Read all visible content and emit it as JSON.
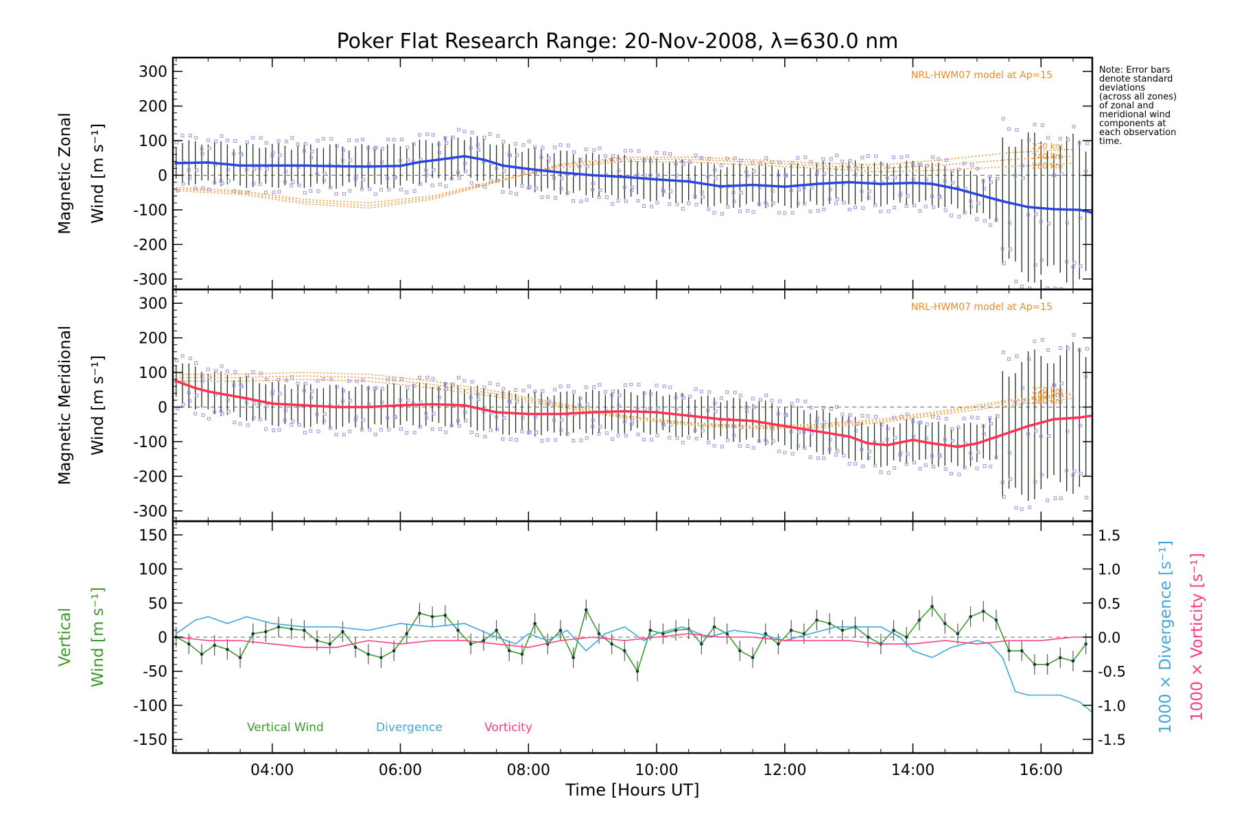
{
  "title": "Poker Flat Research Range: 20-Nov-2008, λ=630.0 nm",
  "note_lines": [
    "Note: Error bars",
    "denote standard",
    "deviations",
    "(across all zones)",
    "of zonal and",
    "meridional wind",
    "components at",
    "each observation",
    "time."
  ],
  "colors": {
    "zonal": "#2a44e0",
    "meridional": "#ff3050",
    "vertical": "#3c9a2a",
    "divergence": "#3fa6d9",
    "vorticity": "#ff3a7a",
    "model": "#f08a24",
    "scatter": "#9a92dc"
  },
  "chart_data": [
    {
      "type": "line",
      "id": "zonal",
      "ylabel_line1": "Magnetic Zonal",
      "ylabel_line2": "Wind [m s⁻¹]",
      "ylim": [
        -330,
        340
      ],
      "yticks": [
        -300,
        -200,
        -100,
        0,
        100,
        200,
        300
      ],
      "xlim": [
        2.45,
        16.8
      ],
      "model_label": "NRL-HWM07 model at Ap=15",
      "model_altitudes": [
        "220 km",
        "240 km",
        "260 km"
      ],
      "series": [
        {
          "role": "mean",
          "x": [
            2.5,
            3.0,
            3.5,
            4.0,
            4.5,
            5.0,
            5.5,
            6.0,
            6.3,
            6.6,
            7.0,
            7.3,
            7.6,
            8.0,
            8.5,
            9.0,
            9.5,
            10.0,
            10.5,
            11.0,
            11.5,
            12.0,
            12.5,
            13.0,
            13.5,
            14.0,
            14.3,
            14.7,
            15.0,
            15.4,
            15.8,
            16.2,
            16.6,
            16.8
          ],
          "y": [
            35,
            37,
            28,
            28,
            28,
            26,
            25,
            27,
            38,
            45,
            55,
            45,
            28,
            18,
            8,
            0,
            -5,
            -12,
            -18,
            -32,
            -28,
            -33,
            -25,
            -20,
            -25,
            -22,
            -25,
            -40,
            -55,
            -75,
            -92,
            -98,
            -100,
            -108
          ]
        },
        {
          "role": "model",
          "name": "220 km",
          "x": [
            2.5,
            3.5,
            4.5,
            5.5,
            6.5,
            7.5,
            8.5,
            9.5,
            10.5,
            11.5,
            12.5,
            13.5,
            14.5,
            15.5,
            16.5
          ],
          "y": [
            -45,
            -55,
            -82,
            -95,
            -70,
            -20,
            32,
            52,
            52,
            45,
            35,
            30,
            45,
            65,
            75
          ]
        },
        {
          "role": "model",
          "name": "240 km",
          "x": [
            2.5,
            3.5,
            4.5,
            5.5,
            6.5,
            7.5,
            8.5,
            9.5,
            10.5,
            11.5,
            12.5,
            13.5,
            14.5,
            15.5,
            16.5
          ],
          "y": [
            -40,
            -50,
            -76,
            -88,
            -65,
            -18,
            28,
            46,
            46,
            38,
            28,
            20,
            30,
            45,
            55
          ]
        },
        {
          "role": "model",
          "name": "260 km",
          "x": [
            2.5,
            3.5,
            4.5,
            5.5,
            6.5,
            7.5,
            8.5,
            9.5,
            10.5,
            11.5,
            12.5,
            13.5,
            14.5,
            15.5,
            16.5
          ],
          "y": [
            -35,
            -45,
            -70,
            -80,
            -60,
            -15,
            22,
            40,
            38,
            30,
            20,
            10,
            15,
            25,
            35
          ]
        }
      ]
    },
    {
      "type": "line",
      "id": "meridional",
      "ylabel_line1": "Magnetic Meridional",
      "ylabel_line2": "Wind [m s⁻¹]",
      "ylim": [
        -330,
        340
      ],
      "yticks": [
        -300,
        -200,
        -100,
        0,
        100,
        200,
        300
      ],
      "xlim": [
        2.45,
        16.8
      ],
      "model_label": "NRL-HWM07 model at Ap=15",
      "model_altitudes": [
        "220 km",
        "240 km",
        "260 km"
      ],
      "series": [
        {
          "role": "mean",
          "x": [
            2.5,
            2.8,
            3.0,
            3.3,
            3.6,
            4.0,
            4.5,
            5.0,
            5.5,
            6.0,
            6.5,
            7.0,
            7.5,
            8.0,
            8.5,
            9.0,
            9.5,
            10.0,
            10.5,
            11.0,
            11.5,
            12.0,
            12.5,
            13.0,
            13.3,
            13.6,
            14.0,
            14.3,
            14.7,
            15.0,
            15.4,
            15.8,
            16.2,
            16.6,
            16.8
          ],
          "y": [
            75,
            55,
            45,
            35,
            25,
            10,
            5,
            0,
            0,
            5,
            8,
            5,
            -15,
            -20,
            -20,
            -15,
            -12,
            -15,
            -25,
            -35,
            -40,
            -55,
            -70,
            -85,
            -105,
            -110,
            -95,
            -105,
            -115,
            -105,
            -80,
            -55,
            -35,
            -30,
            -25
          ]
        },
        {
          "role": "model",
          "name": "220 km",
          "x": [
            2.5,
            3.5,
            4.5,
            5.5,
            6.5,
            7.5,
            8.5,
            9.5,
            10.5,
            11.5,
            12.5,
            13.5,
            14.5,
            15.5,
            16.5
          ],
          "y": [
            95,
            95,
            100,
            95,
            75,
            45,
            10,
            -25,
            -45,
            -55,
            -50,
            -35,
            -10,
            20,
            40
          ]
        },
        {
          "role": "model",
          "name": "240 km",
          "x": [
            2.5,
            3.5,
            4.5,
            5.5,
            6.5,
            7.5,
            8.5,
            9.5,
            10.5,
            11.5,
            12.5,
            13.5,
            14.5,
            15.5,
            16.5
          ],
          "y": [
            85,
            85,
            90,
            85,
            65,
            38,
            5,
            -28,
            -48,
            -58,
            -55,
            -40,
            -15,
            15,
            35
          ]
        },
        {
          "role": "model",
          "name": "260 km",
          "x": [
            2.5,
            3.5,
            4.5,
            5.5,
            6.5,
            7.5,
            8.5,
            9.5,
            10.5,
            11.5,
            12.5,
            13.5,
            14.5,
            15.5,
            16.5
          ],
          "y": [
            75,
            75,
            80,
            75,
            55,
            30,
            0,
            -32,
            -52,
            -62,
            -60,
            -45,
            -20,
            5,
            25
          ]
        }
      ]
    },
    {
      "type": "line",
      "id": "vertical",
      "ylabel_line1": "Vertical",
      "ylabel_line2": "Wind [m s⁻¹]",
      "ylim": [
        -170,
        170
      ],
      "yticks": [
        -150,
        -100,
        -50,
        0,
        50,
        100,
        150
      ],
      "right_axis_1": "1000 × Divergence [s⁻¹]",
      "right_axis_2": "1000 × Vorticity [s⁻¹]",
      "right_ylim": [
        -1.7,
        1.7
      ],
      "right_yticks": [
        -1.5,
        -1.0,
        -0.5,
        0.0,
        0.5,
        1.0,
        1.5
      ],
      "xlabel": "Time [Hours UT]",
      "xticks": [
        4,
        6,
        8,
        10,
        12,
        14,
        16
      ],
      "xtick_labels": [
        "04:00",
        "06:00",
        "08:00",
        "10:00",
        "12:00",
        "14:00",
        "16:00"
      ],
      "xlim": [
        2.45,
        16.8
      ],
      "legend": [
        "Vertical Wind",
        "Divergence",
        "Vorticity"
      ],
      "series": [
        {
          "role": "vertical",
          "name": "Vertical Wind",
          "x": [
            2.5,
            2.7,
            2.9,
            3.1,
            3.3,
            3.5,
            3.7,
            3.9,
            4.1,
            4.3,
            4.5,
            4.7,
            4.9,
            5.1,
            5.3,
            5.5,
            5.7,
            5.9,
            6.1,
            6.3,
            6.5,
            6.7,
            6.9,
            7.1,
            7.3,
            7.5,
            7.7,
            7.9,
            8.1,
            8.3,
            8.5,
            8.7,
            8.9,
            9.1,
            9.3,
            9.5,
            9.7,
            9.9,
            10.1,
            10.3,
            10.5,
            10.7,
            10.9,
            11.1,
            11.3,
            11.5,
            11.7,
            11.9,
            12.1,
            12.3,
            12.5,
            12.7,
            12.9,
            13.1,
            13.3,
            13.5,
            13.7,
            13.9,
            14.1,
            14.3,
            14.5,
            14.7,
            14.9,
            15.1,
            15.3,
            15.5,
            15.7,
            15.9,
            16.1,
            16.3,
            16.5,
            16.7
          ],
          "y": [
            0,
            -10,
            -25,
            -12,
            -18,
            -30,
            5,
            8,
            15,
            12,
            10,
            -5,
            -10,
            8,
            -15,
            -25,
            -30,
            -20,
            5,
            35,
            30,
            32,
            10,
            -10,
            -5,
            10,
            -20,
            -25,
            20,
            -10,
            10,
            -30,
            40,
            5,
            -10,
            -20,
            -50,
            10,
            5,
            10,
            12,
            -10,
            15,
            5,
            -20,
            -30,
            5,
            -10,
            10,
            5,
            25,
            20,
            10,
            15,
            0,
            -10,
            10,
            0,
            25,
            45,
            20,
            5,
            30,
            38,
            25,
            -20,
            -20,
            -40,
            -40,
            -30,
            -35,
            -10
          ]
        },
        {
          "role": "divergence",
          "name": "Divergence",
          "x": [
            2.5,
            2.8,
            3.0,
            3.3,
            3.6,
            4.0,
            4.5,
            5.0,
            5.5,
            6.0,
            6.5,
            7.0,
            7.5,
            7.8,
            8.0,
            8.3,
            8.6,
            8.9,
            9.2,
            9.5,
            9.8,
            10.0,
            10.4,
            10.8,
            11.2,
            11.6,
            12.0,
            12.4,
            12.8,
            13.2,
            13.5,
            13.8,
            14.0,
            14.3,
            14.6,
            15.0,
            15.2,
            15.4,
            15.6,
            15.8,
            16.0,
            16.3,
            16.6,
            16.8
          ],
          "y": [
            0.05,
            0.25,
            0.3,
            0.2,
            0.3,
            0.2,
            0.15,
            0.15,
            0.1,
            0.2,
            0.15,
            0.2,
            0.0,
            -0.1,
            0.05,
            -0.05,
            0.1,
            -0.2,
            0.05,
            0.15,
            -0.05,
            0.05,
            0.15,
            0.0,
            0.1,
            0.05,
            -0.05,
            0.05,
            0.15,
            0.15,
            0.15,
            0.0,
            -0.2,
            -0.3,
            -0.15,
            -0.05,
            -0.1,
            -0.3,
            -0.8,
            -0.85,
            -0.85,
            -0.85,
            -0.95,
            -1.1
          ]
        },
        {
          "role": "vorticity",
          "name": "Vorticity",
          "x": [
            2.5,
            3.0,
            3.5,
            4.0,
            4.5,
            5.0,
            5.5,
            6.0,
            6.5,
            7.0,
            7.5,
            8.0,
            8.5,
            9.0,
            9.5,
            10.0,
            10.5,
            11.0,
            11.5,
            12.0,
            12.5,
            13.0,
            13.5,
            14.0,
            14.5,
            15.0,
            15.5,
            16.0,
            16.5,
            16.8
          ],
          "y": [
            0.0,
            -0.05,
            -0.05,
            -0.1,
            -0.15,
            -0.15,
            -0.05,
            -0.1,
            -0.05,
            -0.05,
            -0.1,
            -0.15,
            -0.05,
            0.0,
            -0.05,
            0.0,
            0.05,
            0.0,
            0.0,
            -0.05,
            -0.05,
            -0.05,
            -0.1,
            -0.1,
            -0.05,
            -0.1,
            -0.05,
            -0.05,
            0.0,
            0.0
          ]
        }
      ]
    }
  ]
}
